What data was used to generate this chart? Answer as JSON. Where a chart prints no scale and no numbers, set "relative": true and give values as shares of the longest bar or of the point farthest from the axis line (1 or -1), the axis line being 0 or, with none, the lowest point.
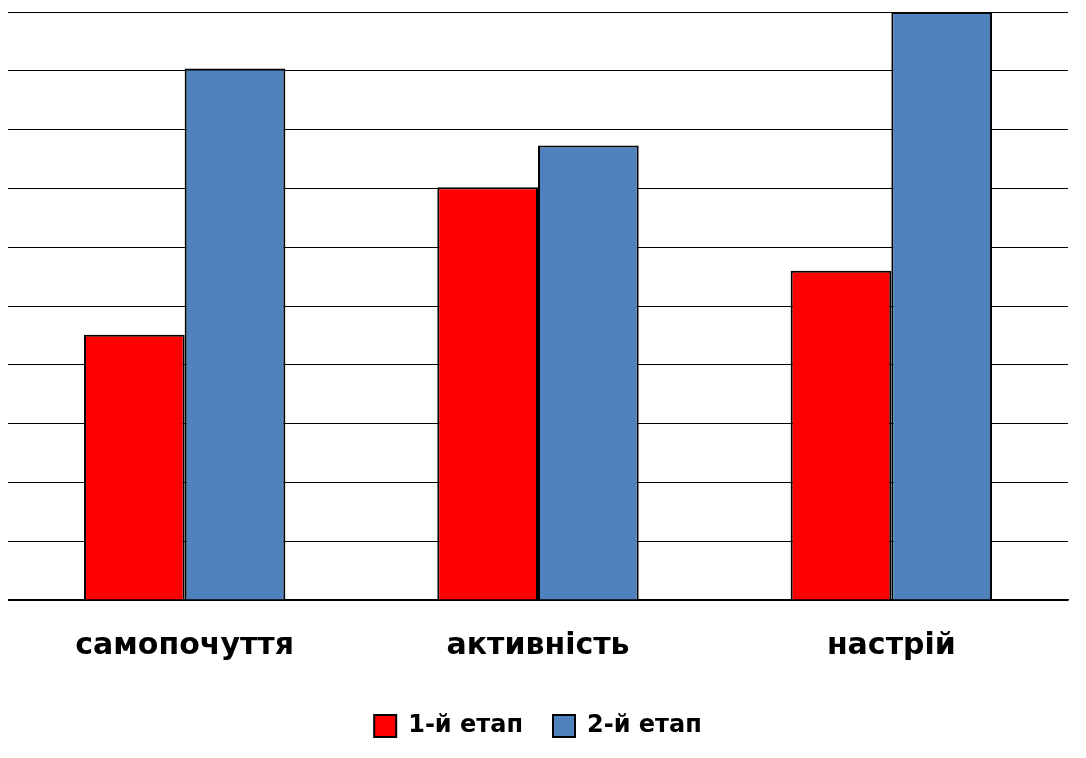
{
  "chart_data": {
    "type": "bar",
    "relative": true,
    "categories": [
      "самопочуття",
      "активність",
      "настрій"
    ],
    "series": [
      {
        "name": "1-й етап",
        "color": "#ff0000",
        "values": [
          0.451,
          0.702,
          0.56
        ]
      },
      {
        "name": "2-й етап",
        "color": "#4f81bd",
        "values": [
          0.904,
          0.773,
          1
        ]
      }
    ],
    "grid": "y",
    "legend": "bottom"
  }
}
